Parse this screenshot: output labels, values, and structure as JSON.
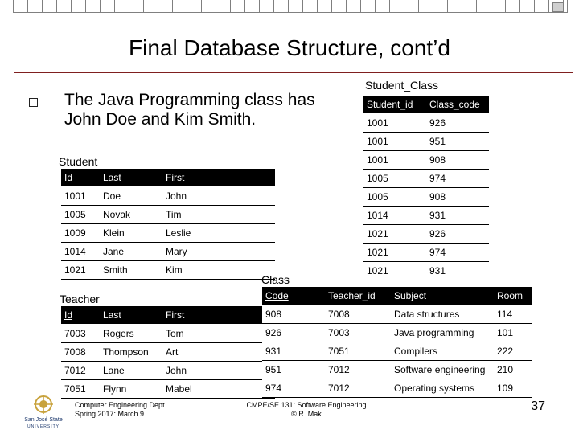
{
  "slide": {
    "title": "Final Database Structure, cont’d",
    "bullet_text": "The Java Programming class has John Doe and Kim Smith.",
    "page_number": "37"
  },
  "student_class": {
    "caption": "Student_Class",
    "headers": [
      "Student_id",
      "Class_code"
    ],
    "rows": [
      [
        "1001",
        "926"
      ],
      [
        "1001",
        "951"
      ],
      [
        "1001",
        "908"
      ],
      [
        "1005",
        "974"
      ],
      [
        "1005",
        "908"
      ],
      [
        "1014",
        "931"
      ],
      [
        "1021",
        "926"
      ],
      [
        "1021",
        "974"
      ],
      [
        "1021",
        "931"
      ]
    ]
  },
  "student": {
    "caption": "Student",
    "headers": [
      "Id",
      "Last",
      "First"
    ],
    "rows": [
      [
        "1001",
        "Doe",
        "John"
      ],
      [
        "1005",
        "Novak",
        "Tim"
      ],
      [
        "1009",
        "Klein",
        "Leslie"
      ],
      [
        "1014",
        "Jane",
        "Mary"
      ],
      [
        "1021",
        "Smith",
        "Kim"
      ]
    ]
  },
  "teacher": {
    "caption": "Teacher",
    "headers": [
      "Id",
      "Last",
      "First"
    ],
    "rows": [
      [
        "7003",
        "Rogers",
        "Tom"
      ],
      [
        "7008",
        "Thompson",
        "Art"
      ],
      [
        "7012",
        "Lane",
        "John"
      ],
      [
        "7051",
        "Flynn",
        "Mabel"
      ]
    ]
  },
  "class": {
    "caption": "Class",
    "headers": [
      "Code",
      "Teacher_id",
      "Subject",
      "Room"
    ],
    "rows": [
      [
        "908",
        "7008",
        "Data structures",
        "114"
      ],
      [
        "926",
        "7003",
        "Java programming",
        "101"
      ],
      [
        "931",
        "7051",
        "Compilers",
        "222"
      ],
      [
        "951",
        "7012",
        "Software engineering",
        "210"
      ],
      [
        "974",
        "7012",
        "Operating systems",
        "109"
      ]
    ]
  },
  "footer": {
    "left_line1": "Computer Engineering Dept.",
    "left_line2": "Spring 2017: March 9",
    "center_line1": "CMPE/SE 131: Software Engineering",
    "center_line2": "© R. Mak"
  },
  "logo": {
    "text_line1": "San José State",
    "text_line2": "UNIVERSITY",
    "color": "#c8a23c"
  }
}
